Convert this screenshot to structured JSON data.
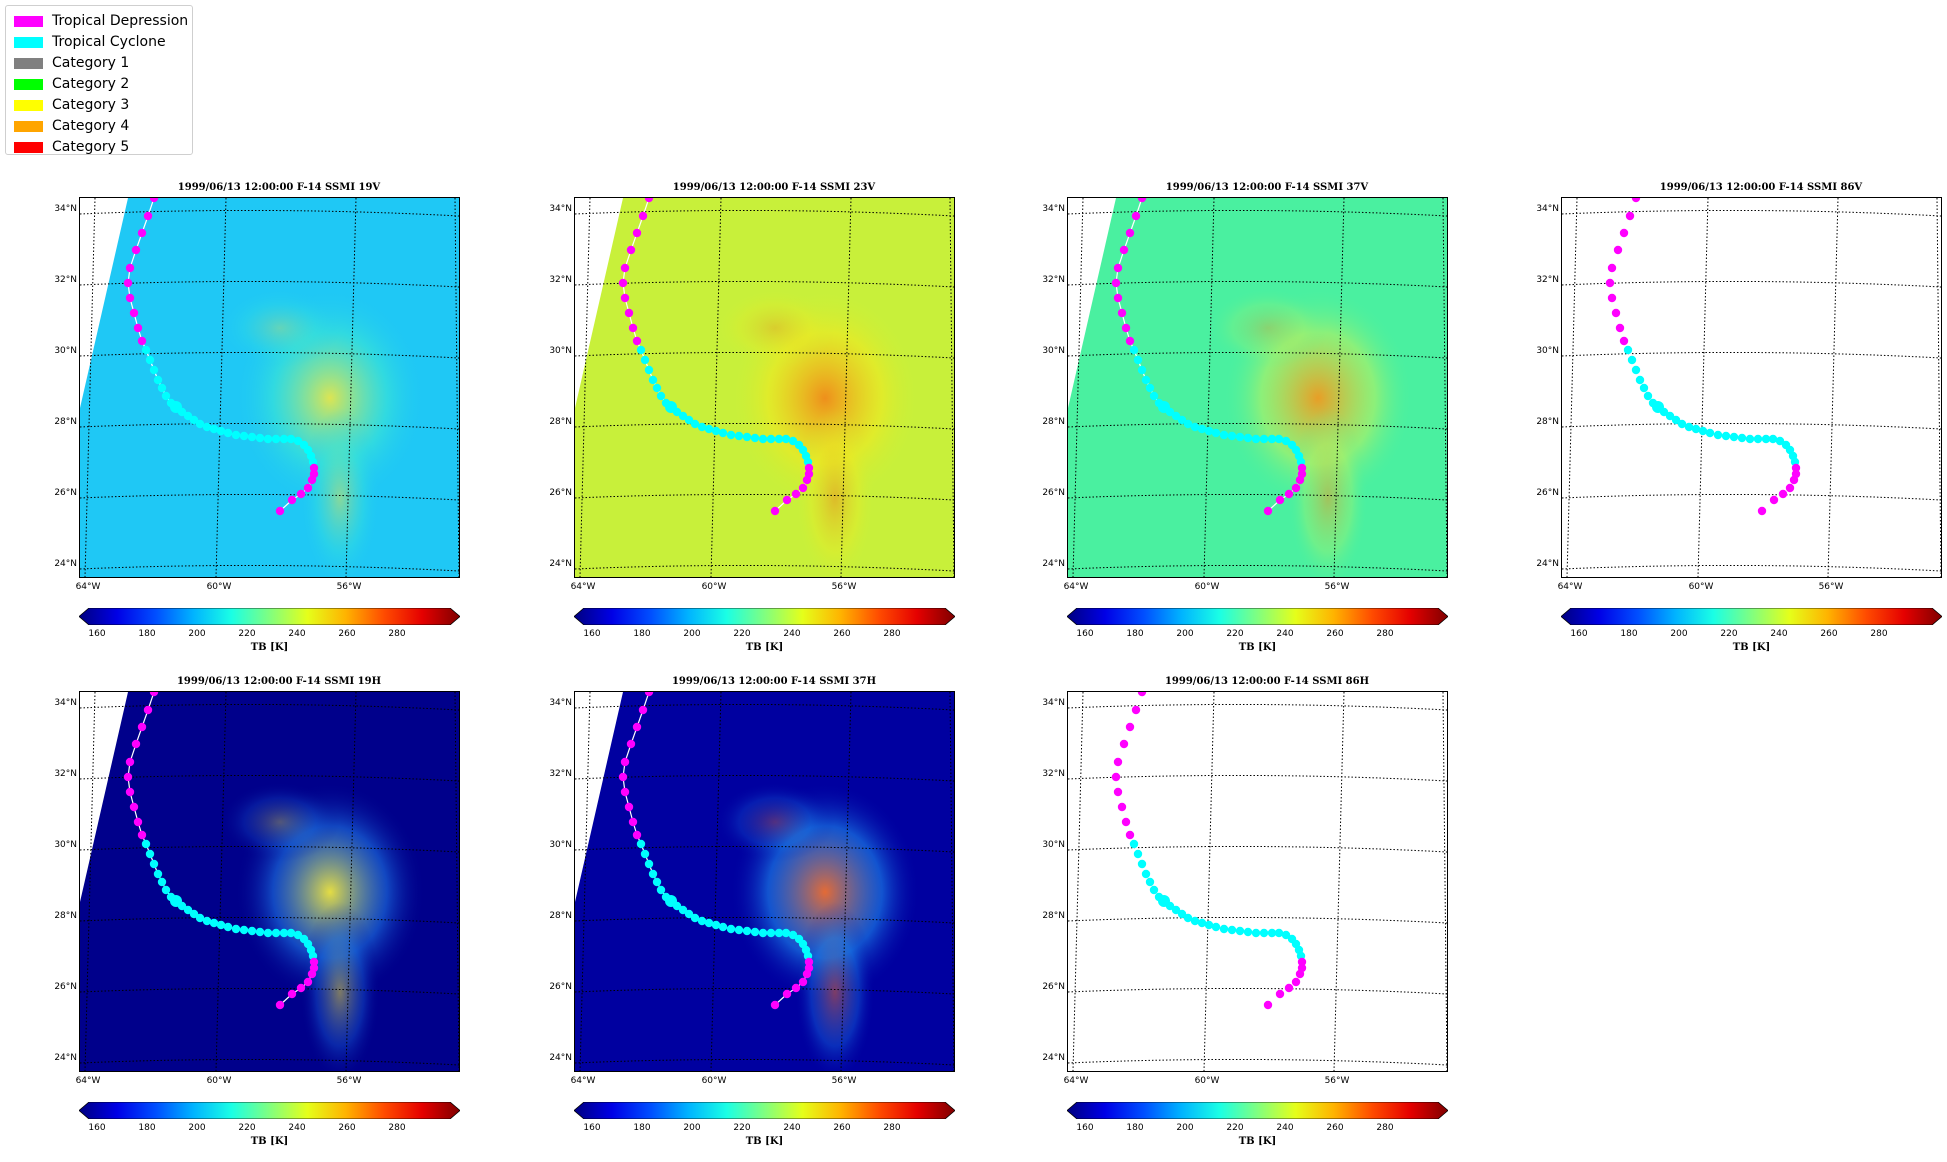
{
  "legend": [
    {
      "label": "Tropical Depression",
      "color": "#ff00ff"
    },
    {
      "label": "Tropical Cyclone",
      "color": "#00ffff"
    },
    {
      "label": "Category 1",
      "color": "#808080"
    },
    {
      "label": "Category 2",
      "color": "#00ff00"
    },
    {
      "label": "Category 3",
      "color": "#ffff00"
    },
    {
      "label": "Category 4",
      "color": "#ffa500"
    },
    {
      "label": "Category 5",
      "color": "#ff0000"
    }
  ],
  "panels": [
    {
      "title": "1999/06/13 12:00:00  F-14 SSMI 19V",
      "style": "cyan-field"
    },
    {
      "title": "1999/06/13 12:00:00  F-14 SSMI 23V",
      "style": "yellow-field"
    },
    {
      "title": "1999/06/13 12:00:00  F-14 SSMI 37V",
      "style": "green-field"
    },
    {
      "title": "1999/06/13 12:00:00  F-14 SSMI 86V",
      "style": "blank"
    },
    {
      "title": "1999/06/13 12:00:00  F-14 SSMI 19H",
      "style": "blue-field"
    },
    {
      "title": "1999/06/13 12:00:00  F-14 SSMI 37H",
      "style": "blue-field-strong"
    },
    {
      "title": "1999/06/13 12:00:00  F-14 SSMI 86H",
      "style": "blank"
    }
  ],
  "axes": {
    "lat_labels": [
      "34°N",
      "32°N",
      "30°N",
      "28°N",
      "26°N",
      "24°N"
    ],
    "lon_labels": [
      "64°W",
      "60°W",
      "56°W"
    ]
  },
  "colorbar": {
    "ticks": [
      "160",
      "180",
      "200",
      "220",
      "240",
      "260",
      "280"
    ],
    "label": "TB [K]"
  }
}
